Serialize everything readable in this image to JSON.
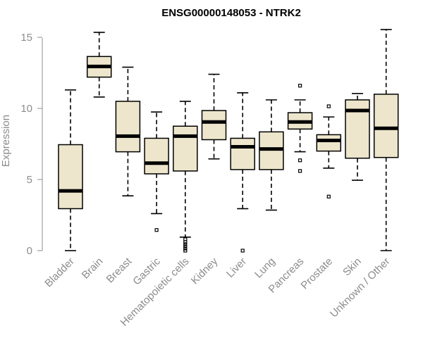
{
  "chart_data": {
    "type": "box",
    "title": "ENSG00000148053 - NTRK2",
    "xlabel": "",
    "ylabel": "Expression",
    "ylim": [
      0,
      15.5
    ],
    "yticks": [
      0,
      5,
      10,
      15
    ],
    "categories": [
      "Bladder",
      "Brain",
      "Breast",
      "Gastric",
      "Hematopoietic cells",
      "Kidney",
      "Liver",
      "Lung",
      "Pancreas",
      "Prostate",
      "Skin",
      "Unknown / Other"
    ],
    "boxes": [
      {
        "min": 0.0,
        "q1": 2.95,
        "median": 4.2,
        "q3": 7.45,
        "max": 11.3,
        "outliers": []
      },
      {
        "min": 10.8,
        "q1": 12.2,
        "median": 12.95,
        "q3": 13.65,
        "max": 15.35,
        "outliers": []
      },
      {
        "min": 3.85,
        "q1": 6.95,
        "median": 8.05,
        "q3": 10.5,
        "max": 12.9,
        "outliers": []
      },
      {
        "min": 2.6,
        "q1": 5.4,
        "median": 6.15,
        "q3": 7.9,
        "max": 9.75,
        "outliers": [
          1.45
        ]
      },
      {
        "min": 0.95,
        "q1": 5.6,
        "median": 8.05,
        "q3": 8.75,
        "max": 10.5,
        "outliers": [
          0.8,
          0.6,
          0.45,
          0.3,
          0.15,
          0.0
        ]
      },
      {
        "min": 6.45,
        "q1": 7.8,
        "median": 9.05,
        "q3": 9.85,
        "max": 12.4,
        "outliers": []
      },
      {
        "min": 2.95,
        "q1": 5.7,
        "median": 7.3,
        "q3": 7.9,
        "max": 11.1,
        "outliers": [
          0.0
        ]
      },
      {
        "min": 2.85,
        "q1": 5.7,
        "median": 7.15,
        "q3": 8.35,
        "max": 10.6,
        "outliers": []
      },
      {
        "min": 6.95,
        "q1": 8.55,
        "median": 9.05,
        "q3": 9.7,
        "max": 10.6,
        "outliers": [
          11.6,
          6.35,
          5.6
        ]
      },
      {
        "min": 5.8,
        "q1": 7.0,
        "median": 7.75,
        "q3": 8.15,
        "max": 9.4,
        "outliers": [
          10.15,
          3.8
        ]
      },
      {
        "min": 4.95,
        "q1": 6.5,
        "median": 9.85,
        "q3": 10.6,
        "max": 11.05,
        "outliers": []
      },
      {
        "min": 0.0,
        "q1": 6.55,
        "median": 8.6,
        "q3": 11.0,
        "max": 15.55,
        "outliers": []
      }
    ]
  }
}
